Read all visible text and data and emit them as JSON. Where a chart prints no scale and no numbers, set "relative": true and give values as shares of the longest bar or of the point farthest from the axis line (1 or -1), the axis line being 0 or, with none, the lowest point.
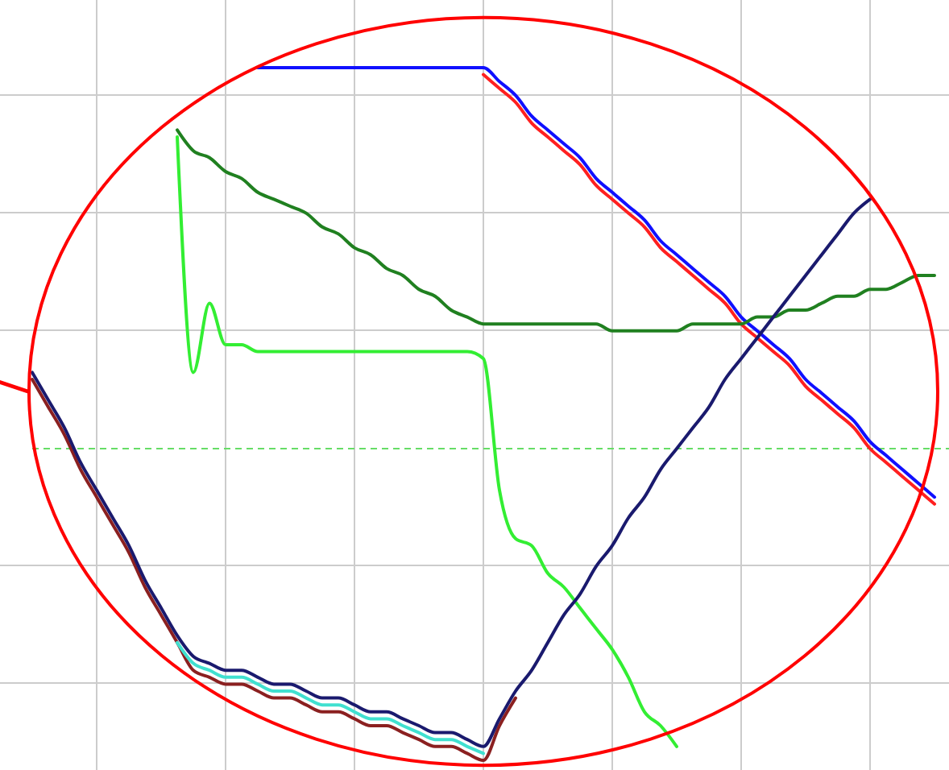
{
  "chart_data": {
    "type": "line",
    "relative": true,
    "grid": true,
    "categories": [
      null,
      null,
      null,
      null,
      null,
      null,
      null,
      null,
      null,
      null,
      null,
      null,
      null,
      null,
      null,
      null,
      null,
      null,
      null,
      null,
      null,
      null,
      null,
      null,
      null,
      null,
      null,
      null,
      null,
      null,
      null,
      null,
      null,
      null,
      null,
      null,
      null,
      null,
      null,
      null,
      null,
      null,
      null,
      null,
      null,
      null,
      null,
      null,
      null,
      null,
      null,
      null,
      null,
      null,
      null,
      null,
      null,
      null,
      null
    ],
    "series": [
      {
        "color": "#1010ff",
        "values": [
          null,
          null,
          null,
          null,
          null,
          null,
          null,
          null,
          null,
          null,
          null,
          null,
          null,
          null,
          null,
          null,
          1.0,
          1.0,
          1.0,
          1.0,
          1.0,
          1.0,
          1.0,
          1.0,
          1.0,
          1.0,
          1.0,
          1.0,
          1.0,
          1.0,
          1.0,
          0.98,
          0.96,
          0.93,
          0.91,
          0.89,
          0.87,
          0.84,
          0.82,
          0.8,
          0.78,
          0.75,
          0.73,
          0.71,
          0.69,
          0.67,
          0.64,
          0.62,
          0.6,
          0.58,
          0.55,
          0.53,
          0.51,
          0.49,
          0.46,
          0.44,
          0.42,
          0.4,
          0.38
        ]
      },
      {
        "color": "#ff2020",
        "values": [
          null,
          null,
          null,
          null,
          null,
          null,
          null,
          null,
          null,
          null,
          null,
          null,
          null,
          null,
          null,
          null,
          null,
          null,
          null,
          null,
          null,
          null,
          null,
          null,
          null,
          null,
          null,
          null,
          null,
          null,
          0.99,
          0.97,
          0.95,
          0.92,
          0.9,
          0.88,
          0.86,
          0.83,
          0.81,
          0.79,
          0.77,
          0.74,
          0.72,
          0.7,
          0.68,
          0.66,
          0.63,
          0.61,
          0.59,
          0.57,
          0.54,
          0.52,
          0.5,
          0.48,
          0.45,
          0.43,
          0.41,
          0.39,
          0.37
        ]
      },
      {
        "color": "#208020",
        "values": [
          null,
          null,
          null,
          null,
          null,
          null,
          null,
          null,
          null,
          null,
          null,
          0.91,
          0.88,
          0.87,
          0.85,
          0.84,
          0.82,
          0.81,
          0.8,
          0.79,
          0.77,
          0.76,
          0.74,
          0.73,
          0.71,
          0.7,
          0.68,
          0.67,
          0.65,
          0.64,
          0.63,
          0.63,
          0.63,
          0.63,
          0.63,
          0.63,
          0.63,
          0.63,
          0.62,
          0.62,
          0.62,
          0.62,
          0.62,
          0.63,
          0.63,
          0.63,
          0.63,
          0.64,
          0.64,
          0.65,
          0.65,
          0.66,
          0.67,
          0.67,
          0.68,
          0.68,
          0.69,
          0.7,
          0.7
        ]
      },
      {
        "color": "#33ee33",
        "values": [
          null,
          null,
          null,
          null,
          null,
          null,
          null,
          null,
          null,
          null,
          null,
          0.9,
          0.56,
          0.66,
          0.6,
          0.6,
          0.59,
          0.59,
          0.59,
          0.59,
          0.59,
          0.59,
          0.59,
          0.59,
          0.59,
          0.59,
          0.59,
          0.59,
          0.59,
          0.59,
          0.58,
          0.39,
          0.32,
          0.31,
          0.27,
          0.25,
          0.22,
          0.19,
          0.16,
          0.12,
          0.07,
          0.05,
          0.02,
          null,
          null,
          null,
          null,
          null,
          null,
          null,
          null,
          null,
          null,
          null,
          null,
          null,
          null,
          null,
          null
        ]
      },
      {
        "color": "#8b2020",
        "values": [
          null,
          null,
          0.55,
          0.51,
          0.47,
          0.42,
          0.38,
          0.34,
          0.3,
          0.25,
          0.21,
          0.17,
          0.13,
          0.12,
          0.11,
          0.11,
          0.1,
          0.09,
          0.09,
          0.08,
          0.07,
          0.07,
          0.06,
          0.05,
          0.05,
          0.04,
          0.03,
          0.02,
          0.02,
          0.01,
          0.0,
          0.05,
          0.09,
          null,
          null,
          null,
          null,
          null,
          null,
          null,
          null,
          null,
          null,
          null,
          null,
          null,
          null,
          null,
          null,
          null,
          null,
          null,
          null,
          null,
          null,
          null,
          null,
          null,
          null
        ]
      },
      {
        "color": "#40e0d0",
        "values": [
          null,
          null,
          null,
          null,
          null,
          null,
          null,
          null,
          null,
          null,
          null,
          0.17,
          0.14,
          0.13,
          0.12,
          0.12,
          0.11,
          0.1,
          0.1,
          0.09,
          0.08,
          0.08,
          0.07,
          0.06,
          0.06,
          0.05,
          0.04,
          0.03,
          0.03,
          0.02,
          0.01,
          null,
          null,
          null,
          null,
          null,
          null,
          null,
          null,
          null,
          null,
          null,
          null,
          null,
          null,
          null,
          null,
          null,
          null,
          null,
          null,
          null,
          null,
          null,
          null,
          null,
          null,
          null,
          null
        ]
      },
      {
        "color": "#1a1a6e",
        "values": [
          null,
          null,
          0.56,
          0.52,
          0.48,
          0.43,
          0.39,
          0.35,
          0.31,
          0.26,
          0.22,
          0.18,
          0.15,
          0.14,
          0.13,
          0.13,
          0.12,
          0.11,
          0.11,
          0.1,
          0.09,
          0.09,
          0.08,
          0.07,
          0.07,
          0.06,
          0.05,
          0.04,
          0.04,
          0.03,
          0.02,
          0.06,
          0.1,
          0.13,
          0.17,
          0.21,
          0.24,
          0.28,
          0.31,
          0.35,
          0.38,
          0.42,
          0.45,
          0.48,
          0.51,
          0.55,
          0.58,
          0.61,
          0.64,
          0.67,
          0.7,
          0.73,
          0.76,
          0.79,
          0.81,
          null,
          null,
          null,
          null
        ]
      }
    ],
    "ref_lines": [
      {
        "axis": "y",
        "value": 0.45,
        "color": "#66dd66",
        "line_style": "dashed"
      }
    ]
  }
}
